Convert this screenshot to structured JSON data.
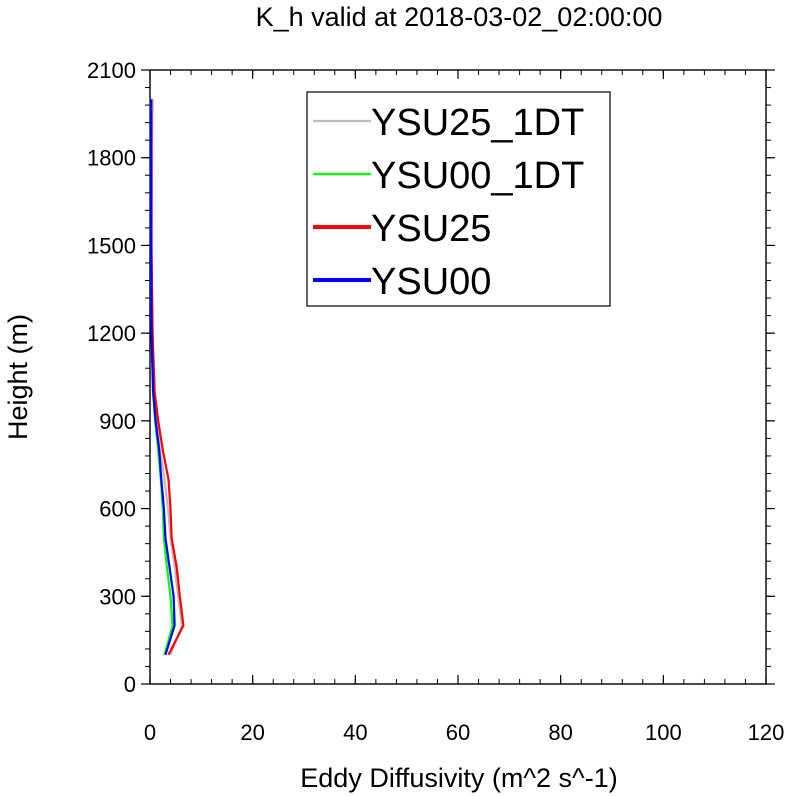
{
  "chart_data": {
    "type": "line",
    "title": "K_h valid at 2018-03-02_02:00:00",
    "xlabel": "Eddy Diffusivity (m^2 s^-1)",
    "ylabel": "Height (m)",
    "xlim": [
      0,
      120
    ],
    "ylim": [
      0,
      2100
    ],
    "x_ticks": [
      "0",
      "20",
      "40",
      "60",
      "80",
      "100",
      "120"
    ],
    "y_ticks": [
      "0",
      "300",
      "600",
      "900",
      "1200",
      "1500",
      "1800",
      "2100"
    ],
    "grid": false,
    "legend_position": "top-right",
    "series": [
      {
        "name": "YSU25_1DT",
        "color": "#bebebe",
        "points": [
          [
            4.0,
            100
          ],
          [
            6.2,
            200
          ],
          [
            5.5,
            300
          ],
          [
            4.8,
            400
          ],
          [
            4.0,
            500
          ],
          [
            3.5,
            600
          ],
          [
            2.8,
            700
          ],
          [
            2.0,
            800
          ],
          [
            1.2,
            900
          ],
          [
            0.7,
            1000
          ],
          [
            0.4,
            1200
          ],
          [
            0.3,
            1500
          ],
          [
            0.4,
            1800
          ],
          [
            0.5,
            2000
          ]
        ]
      },
      {
        "name": "YSU00_1DT",
        "color": "#00ff00",
        "points": [
          [
            2.8,
            100
          ],
          [
            4.4,
            200
          ],
          [
            4.0,
            300
          ],
          [
            3.3,
            400
          ],
          [
            2.7,
            500
          ],
          [
            2.5,
            600
          ],
          [
            2.1,
            700
          ],
          [
            1.6,
            800
          ],
          [
            1.0,
            900
          ],
          [
            0.6,
            1000
          ],
          [
            0.3,
            1200
          ],
          [
            0.2,
            1500
          ],
          [
            0.2,
            1800
          ],
          [
            0.2,
            2000
          ]
        ]
      },
      {
        "name": "YSU25",
        "color": "#ff0000",
        "points": [
          [
            3.6,
            100
          ],
          [
            6.5,
            200
          ],
          [
            5.8,
            300
          ],
          [
            5.2,
            400
          ],
          [
            4.2,
            500
          ],
          [
            4.0,
            600
          ],
          [
            3.6,
            700
          ],
          [
            2.5,
            800
          ],
          [
            1.6,
            900
          ],
          [
            0.9,
            1000
          ],
          [
            0.5,
            1200
          ],
          [
            0.3,
            1500
          ],
          [
            0.3,
            1800
          ],
          [
            0.3,
            2000
          ]
        ]
      },
      {
        "name": "YSU00",
        "color": "#0000ff",
        "points": [
          [
            3.0,
            100
          ],
          [
            4.8,
            200
          ],
          [
            4.6,
            300
          ],
          [
            3.8,
            400
          ],
          [
            3.0,
            500
          ],
          [
            2.7,
            600
          ],
          [
            2.2,
            700
          ],
          [
            1.8,
            800
          ],
          [
            1.1,
            900
          ],
          [
            0.6,
            1000
          ],
          [
            0.3,
            1200
          ],
          [
            0.2,
            1500
          ],
          [
            0.2,
            1800
          ],
          [
            0.2,
            2000
          ]
        ]
      }
    ]
  }
}
